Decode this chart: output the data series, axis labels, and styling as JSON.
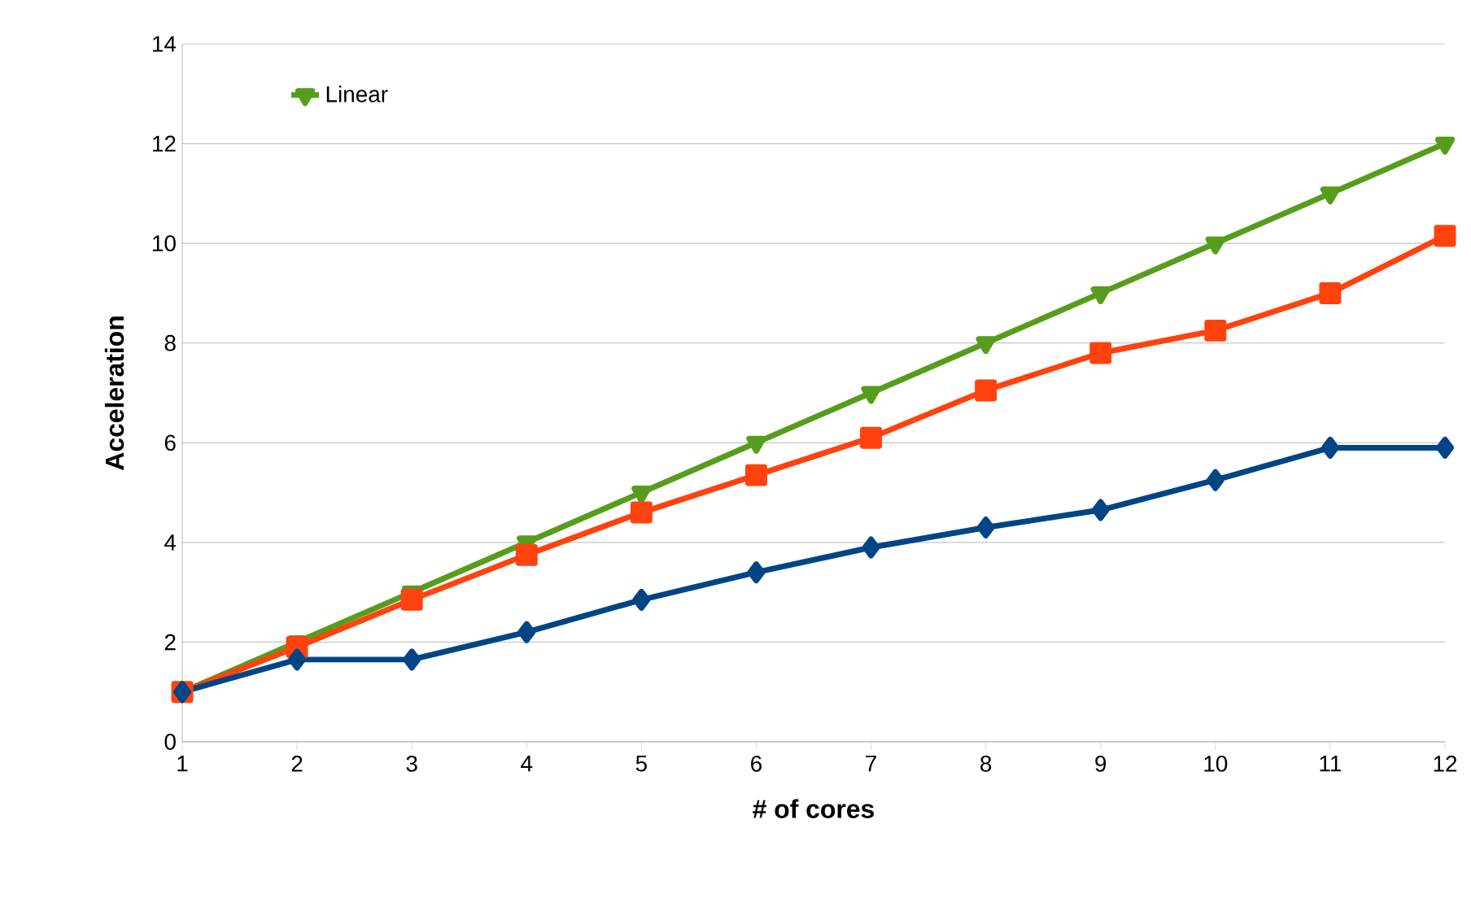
{
  "chart_data": {
    "type": "line",
    "xlabel": "# of cores",
    "ylabel": "Acceleration",
    "x": [
      1,
      2,
      3,
      4,
      5,
      6,
      7,
      8,
      9,
      10,
      11,
      12
    ],
    "series": [
      {
        "name": "Linear",
        "color": "#579d1c",
        "marker": "triangle",
        "values": [
          1,
          2,
          3,
          4,
          5,
          6,
          7,
          8,
          9,
          10,
          11,
          12
        ]
      },
      {
        "color": "#ff420e",
        "marker": "square",
        "values": [
          1.0,
          1.9,
          2.85,
          3.75,
          4.6,
          5.35,
          6.1,
          7.05,
          7.8,
          8.25,
          9.0,
          10.15
        ]
      },
      {
        "color": "#004586",
        "marker": "diamond",
        "values": [
          1.0,
          1.65,
          1.65,
          2.2,
          2.85,
          3.4,
          3.9,
          4.3,
          4.65,
          5.25,
          5.9,
          5.9
        ]
      }
    ],
    "xlim": [
      1,
      12
    ],
    "ylim": [
      0,
      14
    ],
    "xticks": [
      1,
      2,
      3,
      4,
      5,
      6,
      7,
      8,
      9,
      10,
      11,
      12
    ],
    "yticks": [
      0,
      2,
      4,
      6,
      8,
      10,
      12,
      14
    ],
    "grid": "y",
    "legend": "top left"
  }
}
